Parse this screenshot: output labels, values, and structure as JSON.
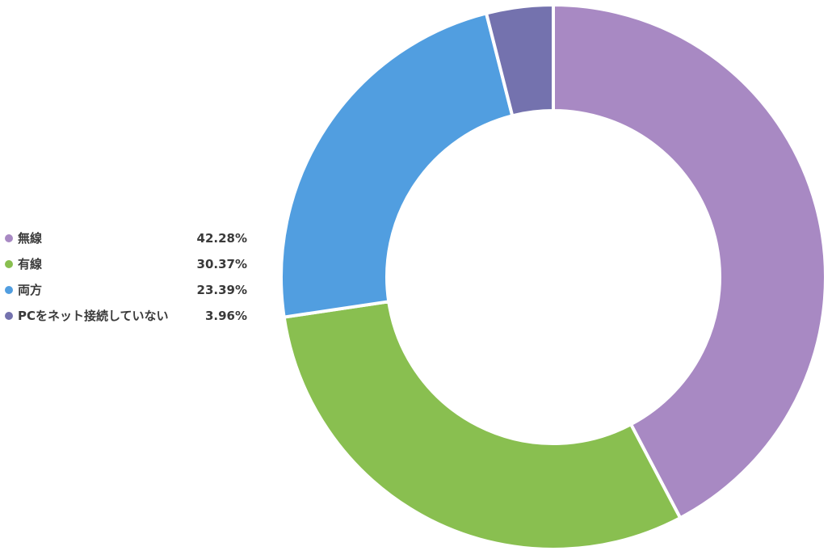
{
  "chart_data": {
    "type": "pie",
    "subtype": "donut",
    "title": "",
    "legend_placement": "left",
    "categories": [
      "無線",
      "有線",
      "両方",
      "PCをネット接続していない"
    ],
    "values": [
      42.28,
      30.37,
      23.39,
      3.96
    ],
    "value_labels": [
      "42.28%",
      "30.37%",
      "23.39%",
      "3.96%"
    ],
    "colors": [
      "#a889c3",
      "#89bf50",
      "#519ee0",
      "#7472ae"
    ]
  }
}
